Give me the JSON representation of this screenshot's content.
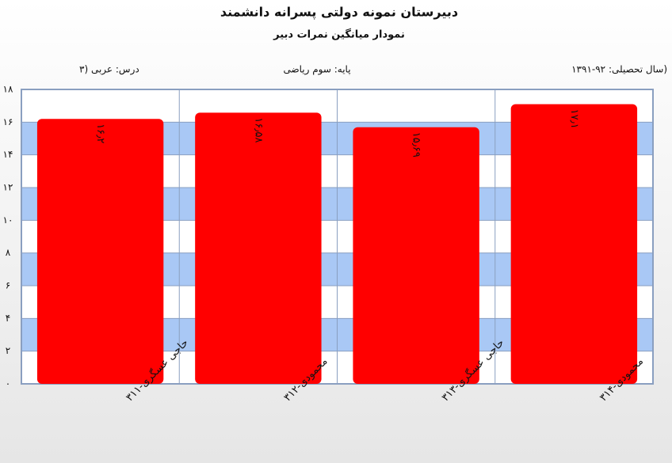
{
  "chart_data": {
    "type": "bar",
    "title": "دبیرستان  نمونه دولتی پسرانه دانشمند",
    "subtitle": "نمودار میانگین نمرات دبیر",
    "header": {
      "left": "درس: عربی  (۳",
      "center": "پایه: سوم ریاضی",
      "right": "(سال تحصیلی: ۹۲-۱۳۹۱"
    },
    "categories": [
      "حاجی عسگری-۳۱۱",
      "محمودی-۳۱۲",
      "حاجی عسگری-۳۱۳",
      "محمودی-۳۱۴"
    ],
    "values": [
      16.2,
      16.58,
      15.69,
      17.1
    ],
    "value_labels": [
      "۱۶٫۲",
      "۱۶٫۵۸",
      "۱۵٫۶۹",
      "۱۷٫۱"
    ],
    "color": "#ff0000",
    "ylim": [
      0,
      18
    ],
    "yticks": [
      {
        "value": 0,
        "label": "۰"
      },
      {
        "value": 2,
        "label": "۲"
      },
      {
        "value": 4,
        "label": "۴"
      },
      {
        "value": 6,
        "label": "۶"
      },
      {
        "value": 8,
        "label": "۸"
      },
      {
        "value": 10,
        "label": "۱۰"
      },
      {
        "value": 12,
        "label": "۱۲"
      },
      {
        "value": 14,
        "label": "۱۴"
      },
      {
        "value": 16,
        "label": "۱۶"
      },
      {
        "value": 18,
        "label": "۱۸"
      }
    ],
    "band_color": "#a9c8f5",
    "grid": true
  }
}
